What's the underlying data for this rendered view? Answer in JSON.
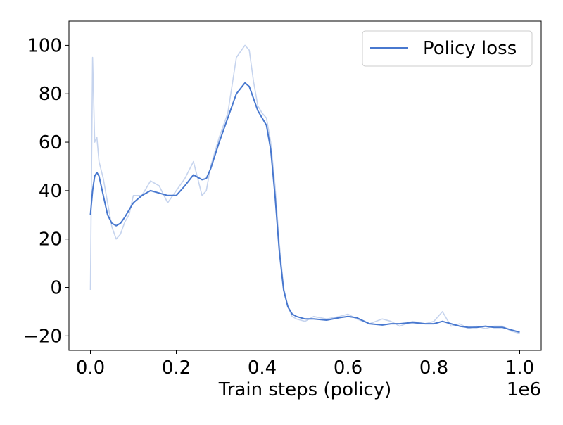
{
  "chart_data": {
    "type": "line",
    "title": "",
    "xlabel": "Train steps (policy)",
    "ylabel": "",
    "x_offset_label": "1e6",
    "xlim": [
      -0.05,
      1.05
    ],
    "ylim": [
      -26,
      110
    ],
    "x_ticks": [
      0.0,
      0.2,
      0.4,
      0.6,
      0.8,
      1.0
    ],
    "x_tick_labels": [
      "0.0",
      "0.2",
      "0.4",
      "0.6",
      "0.8",
      "1.0"
    ],
    "y_ticks": [
      -20,
      0,
      20,
      40,
      60,
      80,
      100
    ],
    "y_tick_labels": [
      "−20",
      "0",
      "20",
      "40",
      "60",
      "80",
      "100"
    ],
    "grid": false,
    "legend": {
      "placement": "top-right",
      "entries": [
        "Policy loss"
      ]
    },
    "series": [
      {
        "name": "Policy loss",
        "color": "#4878cf",
        "raw_color": "#c6d4ee",
        "x": [
          0.0,
          0.005,
          0.01,
          0.015,
          0.02,
          0.03,
          0.04,
          0.05,
          0.06,
          0.07,
          0.08,
          0.09,
          0.1,
          0.12,
          0.14,
          0.16,
          0.18,
          0.2,
          0.22,
          0.24,
          0.26,
          0.27,
          0.28,
          0.3,
          0.32,
          0.34,
          0.36,
          0.37,
          0.38,
          0.39,
          0.4,
          0.41,
          0.42,
          0.43,
          0.44,
          0.45,
          0.46,
          0.47,
          0.48,
          0.5,
          0.52,
          0.55,
          0.58,
          0.6,
          0.62,
          0.65,
          0.68,
          0.7,
          0.72,
          0.75,
          0.78,
          0.8,
          0.82,
          0.84,
          0.86,
          0.88,
          0.9,
          0.92,
          0.94,
          0.96,
          0.98,
          1.0
        ],
        "smoothed": [
          30,
          40,
          46,
          47.5,
          46,
          38,
          30,
          26.5,
          25.5,
          26.5,
          29,
          32,
          35,
          38,
          40,
          39,
          38,
          38,
          42,
          46.5,
          44.5,
          45,
          49,
          60,
          70,
          80,
          84.5,
          83,
          78,
          73,
          70,
          67,
          57,
          38,
          15,
          -1,
          -8,
          -11,
          -12,
          -13,
          -13,
          -13.5,
          -12.5,
          -12,
          -12.5,
          -15,
          -15.5,
          -15,
          -15,
          -14.5,
          -15,
          -15,
          -14,
          -15,
          -16,
          -16.5,
          -16.5,
          -16,
          -16.5,
          -16.5,
          -17.5,
          -18.5
        ],
        "raw": [
          -1,
          95,
          60,
          62,
          52,
          45,
          35,
          25,
          20,
          22,
          27,
          30,
          38,
          38,
          44,
          42,
          35,
          40,
          45,
          52,
          38,
          40,
          50,
          62,
          72,
          95,
          100,
          98,
          85,
          75,
          72,
          70,
          60,
          42,
          18,
          0,
          -8,
          -12,
          -13,
          -14,
          -12,
          -13,
          -12,
          -11,
          -13,
          -15,
          -13,
          -14,
          -16,
          -14,
          -15,
          -14,
          -10,
          -16,
          -15,
          -17,
          -16,
          -17,
          -16,
          -16,
          -18,
          -19
        ]
      }
    ]
  }
}
